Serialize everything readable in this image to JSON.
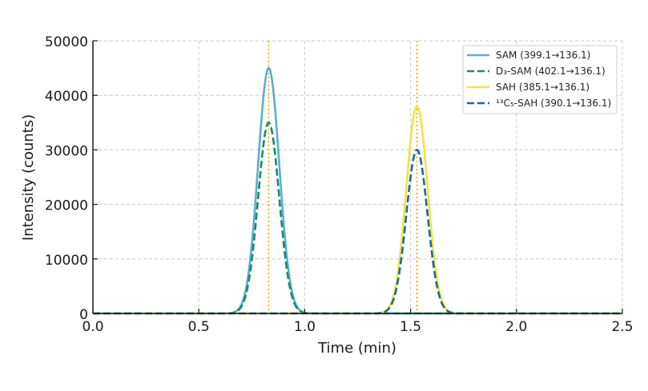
{
  "chart_data": {
    "type": "line",
    "title": "",
    "xlabel": "Time (min)",
    "ylabel": "Intensity (counts)",
    "xlim": [
      0.0,
      2.5
    ],
    "ylim": [
      0,
      50000
    ],
    "xticks": [
      "0.0",
      "0.5",
      "1.0",
      "1.5",
      "2.0",
      "2.5"
    ],
    "xtick_values": [
      0.0,
      0.5,
      1.0,
      1.5,
      2.0,
      2.5
    ],
    "yticks": [
      "0",
      "10000",
      "20000",
      "30000",
      "40000",
      "50000"
    ],
    "ytick_values": [
      0,
      10000,
      20000,
      30000,
      40000,
      50000
    ],
    "grid": true,
    "legend_position": "upper right",
    "series": [
      {
        "name": "SAM (399.1→136.1)",
        "peak_center": 0.83,
        "peak_height": 45000,
        "sigma": 0.05,
        "color": "#5aafd0",
        "style": "solid"
      },
      {
        "name": "D₃-SAM (402.1→136.1)",
        "peak_center": 0.83,
        "peak_height": 35000,
        "sigma": 0.05,
        "color": "#1a8a6a",
        "style": "dashed"
      },
      {
        "name": "SAH (385.1→136.1)",
        "peak_center": 1.53,
        "peak_height": 38000,
        "sigma": 0.05,
        "color": "#f0e442",
        "style": "solid"
      },
      {
        "name": "¹³C₅-SAH (390.1→136.1)",
        "peak_center": 1.53,
        "peak_height": 30000,
        "sigma": 0.05,
        "color": "#1a6a96",
        "style": "dashed"
      }
    ],
    "annotations": [
      {
        "type": "vline",
        "x": 0.83,
        "color": "#e69f00",
        "style": "dotted"
      },
      {
        "type": "vline",
        "x": 1.53,
        "color": "#e69f00",
        "style": "dotted"
      }
    ]
  }
}
